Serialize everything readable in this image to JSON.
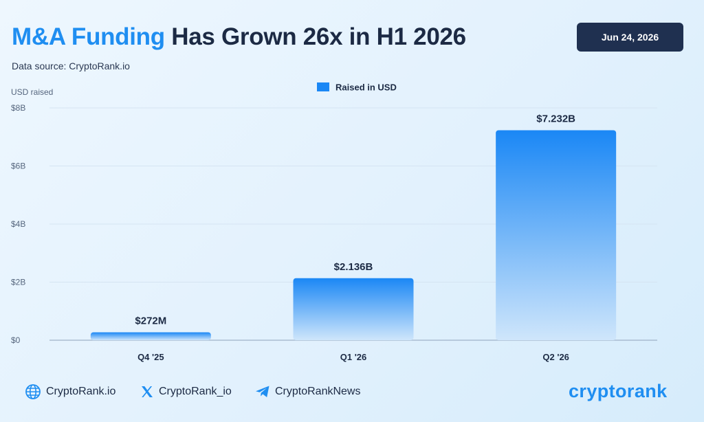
{
  "header": {
    "title_highlight": "M&A Funding",
    "title_rest": " Has Grown 26x in H1 2026",
    "source": "Data source: CryptoRank.io",
    "date": "Jun 24, 2026"
  },
  "chart_data": {
    "type": "bar",
    "ylabel": "USD raised",
    "categories": [
      "Q4 '25",
      "Q1 '26",
      "Q2 '26"
    ],
    "series": [
      {
        "name": "Raised in USD",
        "values": [
          272000000,
          2136000000,
          7232000000
        ],
        "labels": [
          "$272M",
          "$2.136B",
          "$7.232B"
        ]
      }
    ],
    "yticks": [
      {
        "value": 0,
        "label": "$0"
      },
      {
        "value": 2000000000,
        "label": "$2B"
      },
      {
        "value": 4000000000,
        "label": "$4B"
      },
      {
        "value": 6000000000,
        "label": "$6B"
      },
      {
        "value": 8000000000,
        "label": "$8B"
      }
    ],
    "ylim": [
      0,
      8000000000
    ],
    "grid": true,
    "legend_position": "top-center",
    "colors": {
      "bar_top": "#1a87f5",
      "bar_bottom": "#cfe6fb",
      "grid": "#d5e4f2",
      "axis": "#9fb2c8"
    }
  },
  "footer": {
    "website": "CryptoRank.io",
    "twitter": "CryptoRank_io",
    "telegram": "CryptoRankNews",
    "icons": [
      "globe-icon",
      "x-icon",
      "telegram-icon"
    ]
  },
  "brand": {
    "logo_text": "cryptorank",
    "accent": "#1f8ef1",
    "dark": "#1f3050"
  }
}
